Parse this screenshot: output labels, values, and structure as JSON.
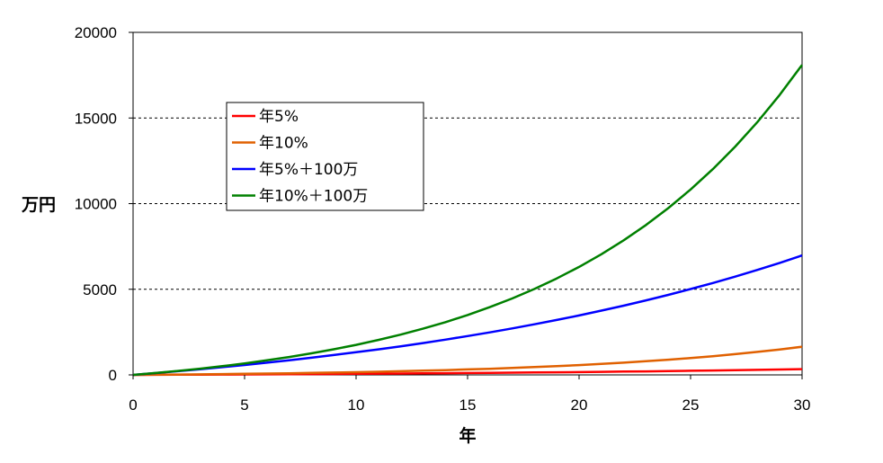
{
  "chart_data": {
    "type": "line",
    "title": "",
    "xlabel": "年",
    "ylabel": "万円",
    "xlim": [
      0,
      30
    ],
    "ylim": [
      0,
      20000
    ],
    "x_ticks": [
      0,
      5,
      10,
      15,
      20,
      25,
      30
    ],
    "y_ticks": [
      0,
      5000,
      10000,
      15000,
      20000
    ],
    "grid": "horizontal dashed",
    "legend_position": "upper-left inside plot",
    "x": [
      0,
      1,
      2,
      3,
      4,
      5,
      6,
      7,
      8,
      9,
      10,
      11,
      12,
      13,
      14,
      15,
      16,
      17,
      18,
      19,
      20,
      21,
      22,
      23,
      24,
      25,
      26,
      27,
      28,
      29,
      30
    ],
    "series": [
      {
        "name": "年5%",
        "color": "#ff0000",
        "values": [
          0,
          5,
          10,
          16,
          22,
          28,
          34,
          41,
          48,
          55,
          63,
          71,
          80,
          89,
          98,
          108,
          118,
          129,
          141,
          153,
          165,
          179,
          193,
          207,
          223,
          239,
          256,
          275,
          294,
          314,
          335
        ]
      },
      {
        "name": "年10%",
        "color": "#e06000",
        "values": [
          0,
          10,
          21,
          33,
          46,
          61,
          77,
          95,
          114,
          136,
          159,
          185,
          214,
          245,
          280,
          318,
          359,
          405,
          456,
          511,
          573,
          640,
          715,
          796,
          885,
          983,
          1092,
          1211,
          1342,
          1487,
          1645
        ]
      },
      {
        "name": "年5%＋100万",
        "color": "#0000ff",
        "values": [
          0,
          105,
          215,
          331,
          452,
          580,
          714,
          855,
          1003,
          1158,
          1321,
          1492,
          1671,
          1860,
          2058,
          2266,
          2484,
          2713,
          2954,
          3207,
          3472,
          3751,
          4043,
          4350,
          4673,
          5011,
          5367,
          5740,
          6132,
          6543,
          6975
        ]
      },
      {
        "name": "年10%＋100万",
        "color": "#008000",
        "values": [
          0,
          110,
          231,
          364,
          511,
          672,
          849,
          1044,
          1259,
          1495,
          1754,
          2040,
          2353,
          2699,
          3078,
          3496,
          3956,
          4462,
          5018,
          5630,
          6303,
          7043,
          7857,
          8753,
          9738,
          10822,
          12014,
          13326,
          14769,
          16355,
          18100
        ]
      }
    ]
  }
}
